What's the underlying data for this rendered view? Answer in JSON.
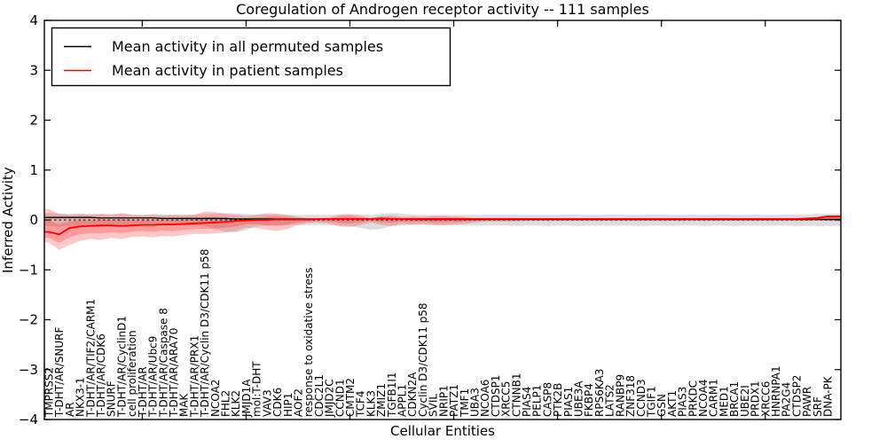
{
  "chart_data": {
    "type": "line",
    "title": "Coregulation of Androgen receptor activity -- 111 samples",
    "xlabel": "Cellular Entities",
    "ylabel": "Inferred Activity",
    "ylim": [
      -4,
      4
    ],
    "yticks": [
      4,
      3,
      2,
      1,
      0,
      -1,
      -2,
      -3,
      -4
    ],
    "grid": false,
    "legend_position": "upper left",
    "zero_line_dashed": true,
    "categories": [
      "TMPRSS2",
      "T-DHT/AR/SNURF",
      "AR",
      "NKX3-1",
      "T-DHT/AR/TIF2/CARM1",
      "T-DHT/AR/CDK6",
      "SNURF",
      "T-DHT/AR/CyclinD1",
      "cell proliferation",
      "T-DHT/AR",
      "T-DHT/AR/Ubc9",
      "T-DHT/AR/Caspase 8",
      "T-DHT/AR/ARA70",
      "MAK",
      "T-DHT/AR/PRX1",
      "T-DHT/AR/Cyclin D3/CDK11 p58",
      "NCOA2",
      "FHL2",
      "KLK2",
      "JMJD1A",
      "mol:T-DHT",
      "VAV3",
      "CDK6",
      "HIP1",
      "AOF2",
      "response to oxidative stress",
      "CDC2L1",
      "JMJD2C",
      "CCND1",
      "CMTM2",
      "TCF4",
      "KLK3",
      "ZMIZ1",
      "TGFB1I1",
      "APPL1",
      "CDKN2A",
      "Cyclin D3/CDK11 p58",
      "SVIL",
      "NRIP1",
      "PATZ1",
      "TMF1",
      "UBA3",
      "NCOA6",
      "CTDSP1",
      "XRCC5",
      "CTNNB1",
      "PIAS4",
      "PELP1",
      "CASP8",
      "PTK2B",
      "PIAS1",
      "UBE3A",
      "FKBP4",
      "RPS6KA3",
      "LATS2",
      "RANBP9",
      "ZNF318",
      "CCND3",
      "TGIF1",
      "GSN",
      "AKT1",
      "PIAS3",
      "PRKDC",
      "NCOA4",
      "CARM1",
      "MED1",
      "BRCA1",
      "UBE2I",
      "PRDX1",
      "XRCC6",
      "HNRNPA1",
      "PA2G4",
      "CTDSP2",
      "PAWR",
      "SRF",
      "DNA-PK"
    ],
    "series": [
      {
        "name": "Mean activity in all permuted samples",
        "color": "#000000",
        "values": [
          0.05,
          0.05,
          0.05,
          0.05,
          0.05,
          0.04,
          0.04,
          0.04,
          0.04,
          0.04,
          0.04,
          0.03,
          0.03,
          0.03,
          0.03,
          0.03,
          0.03,
          0.03,
          0.02,
          0.02,
          0.02,
          0.02,
          0.02,
          0.02,
          0.02,
          0.02,
          0.02,
          0.02,
          0.02,
          0.02,
          0.02,
          0.02,
          0.02,
          0.02,
          0.02,
          0.01,
          0.01,
          0.01,
          0.01,
          0.01,
          0.01,
          0.01,
          0.01,
          0.01,
          0.01,
          0.01,
          0.01,
          0.01,
          0.01,
          0.01,
          0.01,
          0.01,
          0.01,
          0.01,
          0.01,
          0.01,
          0.01,
          0.01,
          0.01,
          0.01,
          0.01,
          0.01,
          0.01,
          0.01,
          0.01,
          0.01,
          0.01,
          0.01,
          0.01,
          0.01,
          0.01,
          0.01,
          0.01,
          0.01,
          0.01,
          0.01
        ]
      },
      {
        "name": "Mean activity in patient samples",
        "color": "#ff0000",
        "values": [
          -0.24,
          -0.29,
          -0.16,
          -0.13,
          -0.12,
          -0.11,
          -0.11,
          -0.12,
          -0.11,
          -0.1,
          -0.1,
          -0.09,
          -0.09,
          -0.08,
          -0.07,
          -0.06,
          -0.05,
          -0.04,
          -0.02,
          -0.01,
          0.0,
          0.0,
          0.01,
          0.01,
          0.01,
          0.01,
          0.02,
          0.02,
          0.02,
          0.02,
          0.02,
          0.02,
          0.03,
          0.02,
          0.02,
          0.02,
          0.02,
          0.02,
          0.02,
          0.02,
          0.02,
          0.02,
          0.02,
          0.02,
          0.02,
          0.02,
          0.02,
          0.02,
          0.02,
          0.02,
          0.02,
          0.02,
          0.02,
          0.02,
          0.02,
          0.02,
          0.02,
          0.02,
          0.02,
          0.02,
          0.02,
          0.02,
          0.02,
          0.02,
          0.02,
          0.02,
          0.02,
          0.02,
          0.02,
          0.02,
          0.02,
          0.02,
          0.02,
          0.03,
          0.04,
          0.07
        ]
      }
    ],
    "bands": [
      {
        "name": "permuted samples range",
        "color": "rgba(0,0,0,0.13)",
        "upper": [
          0.14,
          0.13,
          0.12,
          0.12,
          0.12,
          0.12,
          0.12,
          0.12,
          0.11,
          0.11,
          0.12,
          0.11,
          0.11,
          0.11,
          0.11,
          0.12,
          0.13,
          0.14,
          0.13,
          0.12,
          0.11,
          0.11,
          0.11,
          0.1,
          0.1,
          0.1,
          0.1,
          0.1,
          0.11,
          0.12,
          0.11,
          0.1,
          0.12,
          0.14,
          0.13,
          0.11,
          0.1,
          0.1,
          0.1,
          0.1,
          0.1,
          0.1,
          0.1,
          0.1,
          0.1,
          0.1,
          0.1,
          0.1,
          0.1,
          0.1,
          0.11,
          0.11,
          0.1,
          0.1,
          0.11,
          0.11,
          0.1,
          0.1,
          0.11,
          0.11,
          0.1,
          0.1,
          0.11,
          0.1,
          0.1,
          0.11,
          0.1,
          0.1,
          0.11,
          0.1,
          0.1,
          0.11,
          0.11,
          0.11,
          0.12,
          0.12
        ],
        "lower": [
          -0.12,
          -0.14,
          -0.12,
          -0.11,
          -0.11,
          -0.11,
          -0.11,
          -0.11,
          -0.1,
          -0.1,
          -0.11,
          -0.1,
          -0.1,
          -0.1,
          -0.1,
          -0.12,
          -0.18,
          -0.24,
          -0.25,
          -0.2,
          -0.12,
          -0.11,
          -0.11,
          -0.1,
          -0.1,
          -0.1,
          -0.1,
          -0.1,
          -0.11,
          -0.12,
          -0.16,
          -0.2,
          -0.18,
          -0.12,
          -0.11,
          -0.1,
          -0.1,
          -0.1,
          -0.11,
          -0.11,
          -0.11,
          -0.11,
          -0.11,
          -0.11,
          -0.11,
          -0.12,
          -0.11,
          -0.11,
          -0.12,
          -0.11,
          -0.11,
          -0.12,
          -0.11,
          -0.11,
          -0.12,
          -0.11,
          -0.11,
          -0.12,
          -0.11,
          -0.11,
          -0.12,
          -0.11,
          -0.11,
          -0.12,
          -0.11,
          -0.11,
          -0.12,
          -0.11,
          -0.11,
          -0.12,
          -0.11,
          -0.11,
          -0.12,
          -0.12,
          -0.12,
          -0.12
        ]
      },
      {
        "name": "patient samples range",
        "color": "rgba(255,0,0,0.22)",
        "upper": [
          0.22,
          0.12,
          0.1,
          0.12,
          0.1,
          0.12,
          0.1,
          0.14,
          0.1,
          0.09,
          0.1,
          0.09,
          0.1,
          0.09,
          0.1,
          0.17,
          0.16,
          0.12,
          0.1,
          0.08,
          0.1,
          0.14,
          0.13,
          0.1,
          0.06,
          0.04,
          0.04,
          0.05,
          0.1,
          0.11,
          0.08,
          0.04,
          0.08,
          0.09,
          0.06,
          0.07,
          0.06,
          0.08,
          0.08,
          0.07,
          0.06,
          0.04,
          0.04,
          0.04,
          0.04,
          0.04,
          0.03,
          0.03,
          0.03,
          0.03,
          0.03,
          0.03,
          0.03,
          0.03,
          0.03,
          0.03,
          0.03,
          0.03,
          0.03,
          0.03,
          0.03,
          0.03,
          0.03,
          0.03,
          0.03,
          0.03,
          0.03,
          0.03,
          0.03,
          0.03,
          0.03,
          0.03,
          0.03,
          0.04,
          0.06,
          0.1
        ],
        "lower": [
          -0.45,
          -0.6,
          -0.5,
          -0.42,
          -0.38,
          -0.4,
          -0.36,
          -0.38,
          -0.34,
          -0.33,
          -0.35,
          -0.32,
          -0.33,
          -0.3,
          -0.28,
          -0.28,
          -0.27,
          -0.25,
          -0.22,
          -0.15,
          -0.16,
          -0.2,
          -0.22,
          -0.18,
          -0.1,
          -0.06,
          -0.05,
          -0.07,
          -0.13,
          -0.14,
          -0.1,
          -0.05,
          -0.1,
          -0.12,
          -0.08,
          -0.09,
          -0.08,
          -0.1,
          -0.1,
          -0.09,
          -0.08,
          -0.05,
          -0.03,
          -0.03,
          -0.03,
          -0.03,
          -0.02,
          -0.02,
          -0.02,
          -0.02,
          -0.02,
          -0.02,
          -0.02,
          -0.02,
          -0.02,
          -0.02,
          -0.02,
          -0.02,
          -0.02,
          -0.02,
          -0.02,
          -0.02,
          -0.02,
          -0.02,
          -0.02,
          -0.02,
          -0.02,
          -0.02,
          -0.02,
          -0.02,
          -0.02,
          -0.02,
          -0.02,
          -0.02,
          -0.01,
          -0.02
        ]
      }
    ]
  }
}
